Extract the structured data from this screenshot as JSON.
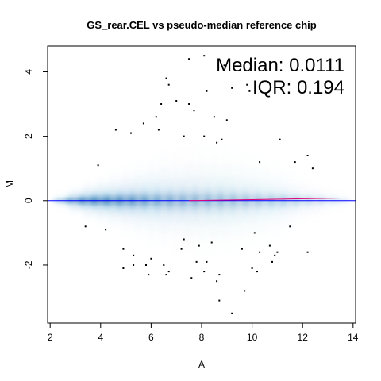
{
  "chart_data": {
    "type": "scatter",
    "title": "GS_rear.CEL vs pseudo-median reference chip",
    "xlabel": "A",
    "ylabel": "M",
    "xlim": [
      1.9,
      14.1
    ],
    "ylim": [
      -3.8,
      4.8
    ],
    "x_ticks": [
      2,
      4,
      6,
      8,
      10,
      12,
      14
    ],
    "y_ticks": [
      -2,
      0,
      2,
      4
    ],
    "annotations": {
      "median": "Median: 0.0111",
      "iqr": "IQR: 0.194"
    },
    "reference_line_y": 0,
    "loess_curve": {
      "x": [
        7.5,
        9,
        10.5,
        12,
        13.5
      ],
      "y": [
        0.0,
        0.02,
        0.04,
        0.06,
        0.08
      ]
    },
    "density": {
      "color": "#08519c",
      "note_free": true,
      "x": [
        2.5,
        3,
        3.5,
        4,
        4.5,
        5,
        5.5,
        6,
        6.5,
        7,
        7.5,
        8,
        8.5,
        9,
        9.5,
        10,
        10.5,
        11,
        11.5,
        12,
        12.5,
        13,
        13.5
      ],
      "spread": [
        0.25,
        0.45,
        0.6,
        0.75,
        0.9,
        1.05,
        1.2,
        1.35,
        1.5,
        1.6,
        1.7,
        1.75,
        1.75,
        1.7,
        1.6,
        1.5,
        1.35,
        1.2,
        1.0,
        0.8,
        0.6,
        0.4,
        0.25
      ],
      "weight": [
        0.55,
        0.9,
        1.0,
        0.95,
        0.85,
        0.75,
        0.65,
        0.55,
        0.5,
        0.45,
        0.42,
        0.4,
        0.38,
        0.36,
        0.34,
        0.32,
        0.3,
        0.28,
        0.26,
        0.24,
        0.22,
        0.2,
        0.18
      ]
    },
    "outliers": {
      "x": [
        8.1,
        7.5,
        8.9,
        6.6,
        6.7,
        9.2,
        9.8,
        8.2,
        9.9,
        6.4,
        7.0,
        7.5,
        6.2,
        7.7,
        8.5,
        9.0,
        5.2,
        5.7,
        6.3,
        7.3,
        8.1,
        8.8,
        4.6,
        11.1,
        12.2,
        3.9,
        10.3,
        11.7,
        12.4,
        8.6,
        3.4,
        4.2,
        11.5,
        10.1,
        10.7,
        4.9,
        5.3,
        6.0,
        7.2,
        7.9,
        8.4,
        9.6,
        10.3,
        10.9,
        5.8,
        6.5,
        8.2,
        10.0,
        4.9,
        5.3,
        5.9,
        6.7,
        7.6,
        8.1,
        8.7,
        10.2,
        10.8,
        8.6,
        8.7,
        9.2,
        6.6,
        11.0,
        12.2,
        7.3,
        7.8,
        9.7
      ],
      "y": [
        4.5,
        4.4,
        4.2,
        3.8,
        3.6,
        3.5,
        3.6,
        3.4,
        3.4,
        3.0,
        3.1,
        3.0,
        2.6,
        2.8,
        2.6,
        2.5,
        2.1,
        2.4,
        2.2,
        2.0,
        2.0,
        1.9,
        2.2,
        1.9,
        1.4,
        1.1,
        1.2,
        1.2,
        1.0,
        1.8,
        -0.8,
        -0.9,
        -0.8,
        -1.0,
        -1.4,
        -1.5,
        -1.7,
        -1.8,
        -1.5,
        -1.4,
        -1.3,
        -1.5,
        -1.6,
        -1.7,
        -2.0,
        -2.0,
        -1.9,
        -2.1,
        -2.1,
        -2.0,
        -2.3,
        -2.2,
        -2.4,
        -2.2,
        -2.3,
        -2.2,
        -1.9,
        -2.5,
        -3.1,
        -3.5,
        -2.3,
        -1.6,
        -1.6,
        -1.2,
        -1.9,
        -2.8
      ]
    }
  }
}
